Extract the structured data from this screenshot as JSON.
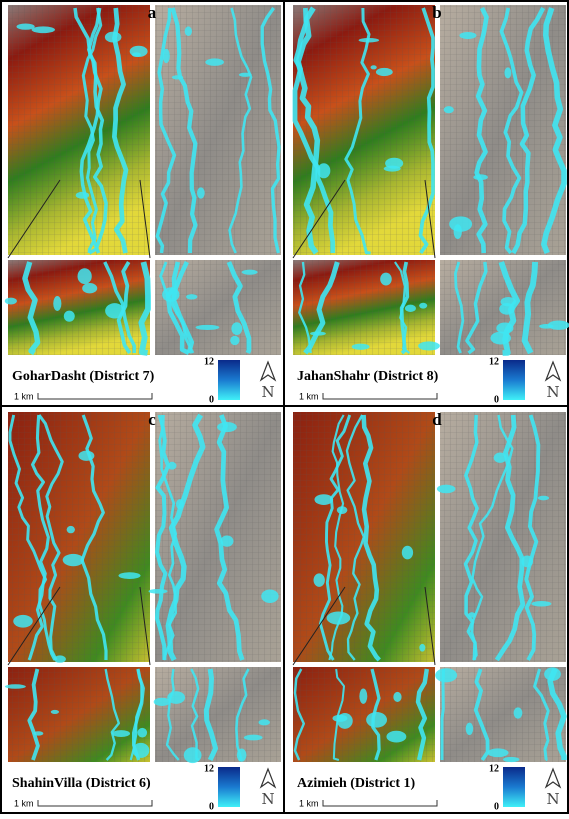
{
  "panels": [
    {
      "letter": "a",
      "title": "GoharDasht (District 7)",
      "legend": {
        "max": 12,
        "min": 0
      },
      "scale": "1 km",
      "north": "N"
    },
    {
      "letter": "b",
      "title": "JahanShahr (District 8)",
      "legend": {
        "max": 12,
        "min": 0
      },
      "scale": "1 km",
      "north": "N"
    },
    {
      "letter": "c",
      "title": "ShahinVilla (District 6)",
      "legend": {
        "max": 12,
        "min": 0
      },
      "scale": "1 km",
      "north": "N"
    },
    {
      "letter": "d",
      "title": "Azimieh (District 1)",
      "legend": {
        "max": 12,
        "min": 0
      },
      "scale": "1 km",
      "north": "N"
    }
  ]
}
